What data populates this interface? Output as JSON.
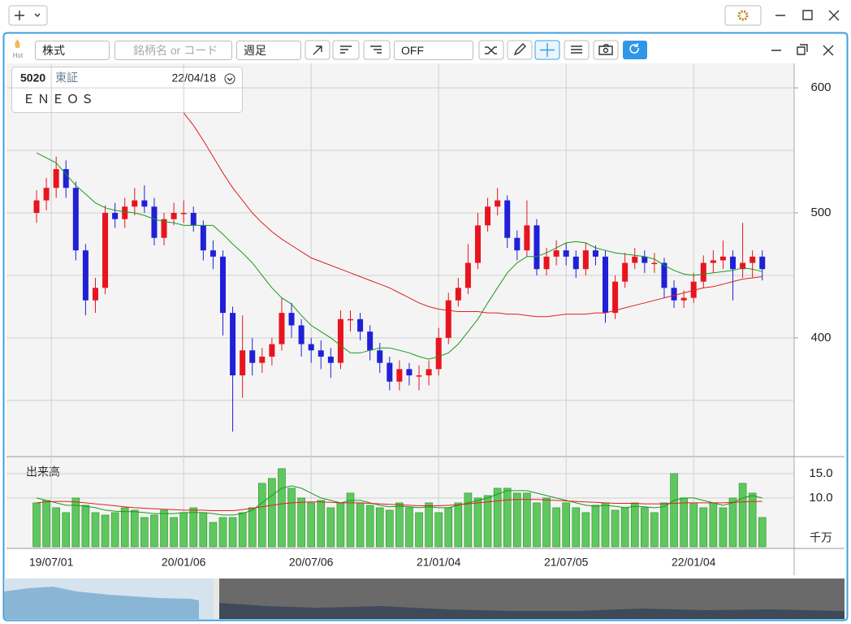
{
  "toolbar": {
    "hot": "Hot",
    "market": "株式",
    "search_placeholder": "銘柄名 or コード",
    "period": "週足",
    "indicator": "OFF"
  },
  "tooltip": {
    "code": "5020",
    "exchange": "東証",
    "date": "22/04/18",
    "name": "ＥＮＥＯＳ"
  },
  "chart_data": {
    "type": "candlestick",
    "open": [
      500,
      510,
      520,
      535,
      520,
      470,
      430,
      440,
      500,
      495,
      505,
      510,
      505,
      480,
      495,
      500,
      500,
      490,
      470,
      465,
      420,
      370,
      390,
      380,
      385,
      395,
      420,
      410,
      395,
      390,
      385,
      380,
      415,
      415,
      405,
      390,
      380,
      365,
      375,
      370,
      370,
      375,
      400,
      430,
      440,
      460,
      490,
      505,
      510,
      480,
      470,
      490,
      455,
      465,
      470,
      465,
      455,
      470,
      465,
      420,
      445,
      460,
      465,
      460,
      460,
      440,
      430,
      432,
      445,
      460,
      462,
      465,
      455,
      460,
      465
    ],
    "high": [
      518,
      528,
      545,
      542,
      525,
      475,
      448,
      506,
      508,
      512,
      520,
      522,
      512,
      500,
      508,
      510,
      505,
      494,
      478,
      470,
      425,
      418,
      400,
      392,
      400,
      432,
      428,
      415,
      400,
      398,
      392,
      422,
      422,
      420,
      410,
      396,
      385,
      382,
      380,
      378,
      382,
      408,
      436,
      448,
      475,
      500,
      512,
      520,
      514,
      486,
      510,
      495,
      472,
      478,
      476,
      470,
      476,
      474,
      470,
      450,
      468,
      472,
      470,
      468,
      464,
      446,
      438,
      452,
      466,
      470,
      478,
      470,
      492,
      470,
      470
    ],
    "low": [
      492,
      502,
      512,
      512,
      462,
      418,
      420,
      435,
      488,
      488,
      498,
      500,
      474,
      474,
      490,
      492,
      485,
      462,
      455,
      402,
      325,
      352,
      370,
      372,
      378,
      390,
      400,
      385,
      380,
      375,
      368,
      375,
      405,
      398,
      382,
      372,
      358,
      358,
      362,
      358,
      362,
      370,
      395,
      425,
      435,
      455,
      485,
      498,
      472,
      462,
      465,
      450,
      450,
      458,
      458,
      448,
      450,
      458,
      412,
      415,
      440,
      455,
      452,
      452,
      432,
      424,
      424,
      428,
      440,
      452,
      455,
      430,
      448,
      448,
      446
    ],
    "close": [
      510,
      520,
      535,
      520,
      470,
      430,
      440,
      500,
      495,
      505,
      510,
      505,
      480,
      495,
      500,
      500,
      490,
      470,
      465,
      420,
      370,
      390,
      380,
      385,
      395,
      420,
      410,
      395,
      390,
      385,
      380,
      415,
      415,
      405,
      390,
      380,
      365,
      375,
      370,
      370,
      375,
      400,
      430,
      440,
      460,
      490,
      505,
      510,
      480,
      470,
      490,
      455,
      465,
      470,
      465,
      455,
      470,
      465,
      420,
      445,
      460,
      465,
      460,
      460,
      440,
      430,
      432,
      445,
      460,
      462,
      465,
      455,
      460,
      465,
      455
    ],
    "colors": {
      "up": "#e8141e",
      "down": "#2020d8"
    },
    "ma_series": [
      {
        "color": "#1a9a1a",
        "values": [
          548,
          544,
          540,
          531,
          522,
          515,
          508,
          504,
          502,
          501,
          500,
          498,
          495,
          493,
          492,
          490,
          490,
          490,
          490,
          483,
          475,
          468,
          460,
          450,
          440,
          432,
          427,
          418,
          410,
          405,
          400,
          394,
          388,
          388,
          390,
          392,
          392,
          390,
          388,
          385,
          383,
          385,
          388,
          395,
          405,
          415,
          428,
          440,
          452,
          460,
          465,
          465,
          468,
          472,
          476,
          477,
          476,
          472,
          470,
          468,
          467,
          466,
          465,
          463,
          458,
          454,
          451,
          450,
          451,
          452,
          453,
          454,
          456,
          455,
          453
        ]
      },
      {
        "color": "#e02020",
        "values": [
          null,
          null,
          null,
          null,
          null,
          null,
          null,
          null,
          null,
          null,
          null,
          null,
          null,
          null,
          null,
          580,
          570,
          558,
          545,
          532,
          520,
          510,
          500,
          492,
          485,
          479,
          474,
          469,
          464,
          461,
          458,
          455,
          452,
          449,
          446,
          443,
          440,
          436,
          432,
          428,
          425,
          423,
          422,
          421,
          421,
          421,
          420,
          420,
          419,
          419,
          418,
          417,
          417,
          418,
          419,
          419,
          419,
          420,
          420,
          422,
          424,
          426,
          428,
          430,
          432,
          434,
          436,
          438,
          440,
          441,
          443,
          445,
          447,
          448,
          449
        ]
      }
    ],
    "ylim": [
      305,
      617
    ],
    "yticks": [
      400,
      500,
      600
    ],
    "ygrid": [
      350,
      450,
      550
    ],
    "xlim": [
      -3.065,
      77.25
    ],
    "xticks": [
      {
        "value": 1.5,
        "label": "19/07/01"
      },
      {
        "value": 15,
        "label": "20/01/06"
      },
      {
        "value": 28,
        "label": "20/07/06"
      },
      {
        "value": 41,
        "label": "21/01/04"
      },
      {
        "value": 54,
        "label": "21/07/05"
      },
      {
        "value": 67,
        "label": "22/01/04"
      }
    ],
    "volume": {
      "label": "出来高",
      "unit": "千万",
      "color": "#5ec85e",
      "ylim": [
        0,
        18.3
      ],
      "yticks": [
        {
          "value": 15,
          "label": "15.0"
        },
        {
          "value": 10,
          "label": "10.0"
        }
      ],
      "values": [
        9,
        9.5,
        8,
        7,
        10,
        8.5,
        7,
        6.5,
        7,
        8,
        7.5,
        6,
        6.5,
        7.5,
        6,
        7,
        8,
        7,
        5,
        6,
        6,
        7,
        8,
        13,
        14,
        16,
        12,
        10,
        9,
        9.5,
        8,
        9,
        11,
        9,
        8.5,
        8,
        7.5,
        9,
        8,
        7,
        9,
        7,
        8,
        9,
        11,
        10,
        10.5,
        12,
        12,
        11,
        11,
        9,
        10,
        8,
        9,
        8,
        7,
        8.5,
        9,
        7.5,
        8,
        9,
        8,
        7,
        9,
        15,
        10,
        9,
        8,
        9,
        8,
        10,
        13,
        11,
        6
      ],
      "ma_series": [
        {
          "color": "#1a9a1a",
          "values": [
            10,
            9.5,
            9,
            8.5,
            8.5,
            8.3,
            8,
            7.5,
            7.3,
            7.2,
            7.2,
            7,
            6.8,
            6.8,
            6.8,
            7,
            7,
            7,
            6.8,
            6.5,
            6.5,
            6.8,
            7.5,
            9,
            10.5,
            12,
            12.5,
            12,
            11,
            10,
            9.5,
            9,
            9.5,
            9.5,
            9,
            8.5,
            8.2,
            8.3,
            8.2,
            8,
            8.2,
            8,
            8,
            8.5,
            9,
            9.5,
            10,
            10.8,
            11.5,
            11.5,
            11.5,
            11,
            10.5,
            10,
            9.5,
            9,
            8.5,
            8.3,
            8.5,
            8.3,
            8,
            8.3,
            8.2,
            8,
            8.2,
            9.5,
            10,
            10,
            9.5,
            9,
            8.5,
            9,
            10,
            10.5,
            10
          ]
        },
        {
          "color": "#e02020",
          "values": [
            9,
            9.2,
            9.3,
            9.3,
            9.2,
            9,
            8.8,
            8.6,
            8.4,
            8.2,
            8,
            7.9,
            7.8,
            7.7,
            7.6,
            7.5,
            7.5,
            7.5,
            7.4,
            7.4,
            7.4,
            7.6,
            7.9,
            8.2,
            8.5,
            8.8,
            9,
            9.1,
            9.2,
            9.2,
            9.1,
            9,
            9,
            9,
            8.9,
            8.8,
            8.7,
            8.6,
            8.5,
            8.4,
            8.4,
            8.4,
            8.5,
            8.6,
            8.8,
            9,
            9.2,
            9.4,
            9.6,
            9.7,
            9.7,
            9.7,
            9.6,
            9.5,
            9.4,
            9.3,
            9.2,
            9.1,
            9,
            8.9,
            8.9,
            8.9,
            8.8,
            8.8,
            8.8,
            8.9,
            9,
            9,
            9,
            9,
            9,
            9.1,
            9.2,
            9.3,
            9.3
          ]
        }
      ]
    }
  }
}
